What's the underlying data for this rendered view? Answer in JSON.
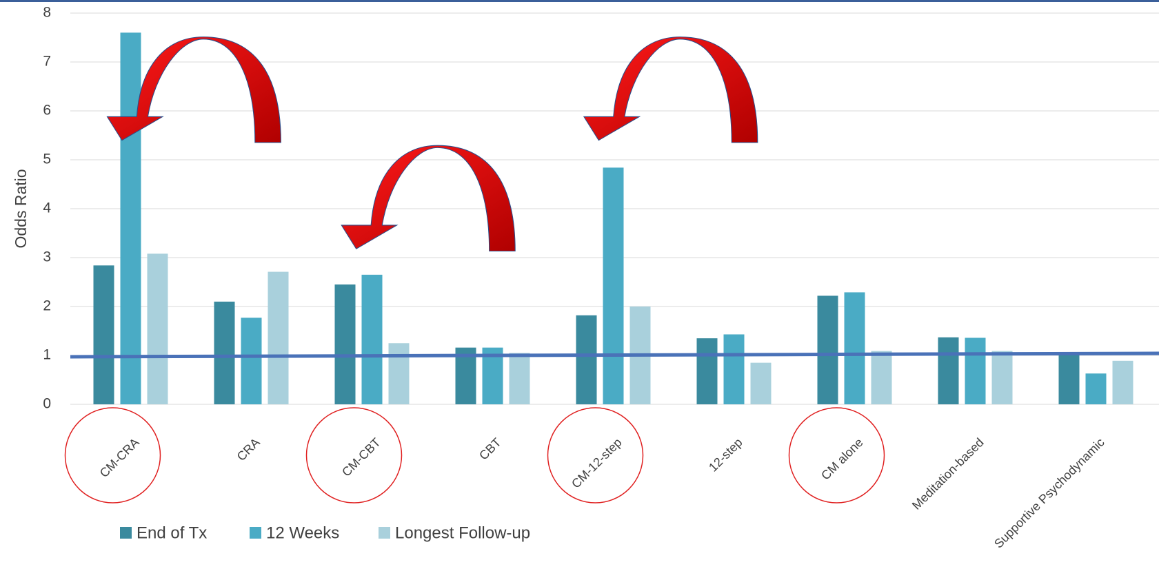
{
  "chart_data": {
    "type": "bar",
    "y_label": "Odds Ratio",
    "categories": [
      "CM-CRA",
      "CRA",
      "CM-CBT",
      "CBT",
      "CM-12-step",
      "12-step",
      "CM alone",
      "Meditation-based",
      "Supportive Psychodynamic"
    ],
    "series": [
      {
        "name": "End of Tx",
        "color": "#3a8a9e",
        "values": [
          2.84,
          2.1,
          2.45,
          1.16,
          1.82,
          1.35,
          2.22,
          1.37,
          1.05
        ]
      },
      {
        "name": "12 Weeks",
        "color": "#4aabc5",
        "values": [
          7.6,
          1.77,
          2.65,
          1.16,
          4.84,
          1.43,
          2.29,
          1.36,
          0.63
        ]
      },
      {
        "name": "Longest Follow-up",
        "color": "#a9d0dc",
        "values": [
          3.08,
          2.71,
          1.25,
          1.05,
          2.0,
          0.85,
          1.09,
          1.09,
          0.89
        ]
      }
    ],
    "reference_line": 1,
    "ylim": [
      0,
      8
    ],
    "yticks": [
      0,
      1,
      2,
      3,
      4,
      5,
      6,
      7,
      8
    ],
    "grid": true
  }
}
